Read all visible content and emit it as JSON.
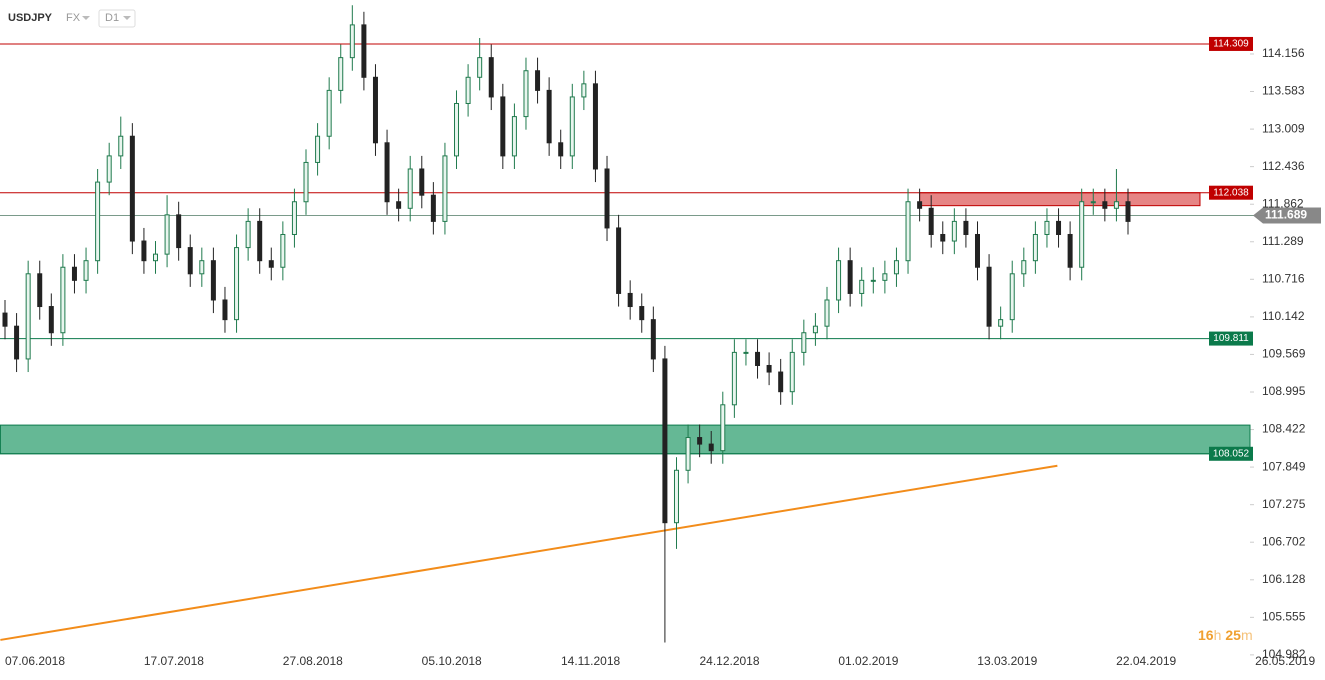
{
  "header": {
    "symbol": "USDJPY",
    "market": "FX",
    "interval": "D1"
  },
  "chart_data": {
    "type": "candlestick",
    "ylim": [
      104.98,
      114.98
    ],
    "yticks": [
      114.156,
      113.583,
      113.009,
      112.436,
      111.862,
      111.289,
      110.716,
      110.142,
      109.569,
      108.995,
      108.422,
      107.849,
      107.275,
      106.702,
      106.128,
      105.555,
      104.982
    ],
    "x_labels": [
      "07.06.2018",
      "17.07.2018",
      "27.08.2018",
      "05.10.2018",
      "14.11.2018",
      "24.12.2018",
      "01.02.2019",
      "13.03.2019",
      "22.04.2019",
      "26.05.2019"
    ],
    "up_color": "#1f7a4d",
    "down_color": "#222222",
    "open": [
      110.2,
      110.0,
      109.5,
      110.8,
      110.3,
      109.9,
      110.9,
      110.7,
      111.0,
      112.2,
      112.6,
      112.9,
      111.3,
      111.0,
      111.1,
      111.7,
      111.2,
      110.8,
      111.0,
      110.4,
      110.1,
      111.2,
      111.6,
      111.0,
      110.9,
      111.4,
      111.9,
      112.5,
      112.9,
      113.6,
      114.1,
      114.6,
      113.8,
      112.8,
      111.9,
      111.8,
      112.4,
      112.0,
      111.6,
      112.6,
      113.4,
      113.8,
      114.1,
      113.5,
      112.6,
      113.2,
      113.9,
      113.6,
      112.8,
      112.6,
      113.5,
      113.7,
      112.4,
      111.5,
      110.5,
      110.3,
      110.1,
      109.5,
      107.0,
      107.8,
      108.3,
      108.2,
      108.1,
      108.8,
      109.6,
      109.6,
      109.4,
      109.3,
      109.0,
      109.6,
      109.9,
      110.0,
      110.4,
      111.0,
      110.5,
      110.7,
      110.7,
      110.8,
      111.0,
      111.9,
      111.8,
      111.4,
      111.3,
      111.6,
      111.4,
      110.9,
      110.0,
      110.1,
      110.8,
      111.0,
      111.4,
      111.6,
      111.4,
      110.9,
      111.9,
      111.9,
      111.8,
      111.9
    ],
    "high": [
      110.4,
      110.2,
      111.0,
      111.0,
      110.5,
      111.1,
      111.1,
      111.2,
      112.4,
      112.8,
      113.2,
      113.1,
      111.5,
      111.3,
      112.0,
      111.9,
      111.4,
      111.2,
      111.2,
      110.6,
      111.4,
      111.8,
      111.8,
      111.2,
      111.6,
      112.1,
      112.7,
      113.1,
      113.8,
      114.3,
      114.9,
      114.8,
      114.0,
      113.0,
      112.1,
      112.6,
      112.6,
      112.2,
      112.8,
      113.6,
      114.0,
      114.4,
      114.3,
      113.7,
      113.4,
      114.1,
      114.1,
      113.8,
      113.0,
      113.7,
      113.9,
      113.9,
      112.6,
      111.7,
      110.7,
      110.5,
      110.3,
      109.7,
      108.0,
      108.5,
      108.5,
      108.4,
      109.0,
      109.8,
      109.8,
      109.8,
      109.6,
      109.5,
      109.8,
      110.1,
      110.2,
      110.6,
      111.2,
      111.2,
      110.9,
      110.9,
      111.0,
      111.2,
      112.1,
      112.1,
      112.0,
      111.6,
      111.8,
      111.8,
      111.6,
      111.1,
      110.3,
      111.0,
      111.2,
      111.6,
      111.8,
      111.8,
      111.6,
      112.1,
      112.1,
      112.1,
      112.4,
      112.1
    ],
    "low": [
      109.8,
      109.3,
      109.3,
      110.1,
      109.7,
      109.7,
      110.5,
      110.5,
      110.8,
      112.0,
      112.4,
      111.1,
      110.8,
      110.8,
      110.9,
      111.0,
      110.6,
      110.6,
      110.2,
      109.9,
      109.9,
      111.0,
      110.8,
      110.7,
      110.7,
      111.2,
      111.7,
      112.3,
      112.7,
      113.4,
      113.9,
      113.6,
      112.6,
      111.7,
      111.6,
      111.6,
      111.8,
      111.4,
      111.4,
      112.4,
      113.2,
      113.6,
      113.3,
      112.4,
      112.4,
      113.0,
      113.4,
      112.6,
      112.4,
      112.4,
      113.3,
      112.2,
      111.3,
      110.3,
      110.1,
      109.9,
      109.3,
      105.17,
      106.6,
      107.6,
      108.0,
      107.9,
      107.9,
      108.6,
      109.4,
      109.2,
      109.1,
      108.8,
      108.8,
      109.4,
      109.7,
      109.8,
      110.2,
      110.3,
      110.3,
      110.5,
      110.5,
      110.6,
      110.8,
      111.6,
      111.2,
      111.1,
      111.1,
      111.2,
      110.7,
      109.8,
      109.8,
      109.9,
      110.6,
      110.8,
      111.2,
      111.2,
      110.7,
      110.7,
      111.7,
      111.6,
      111.6,
      111.4
    ],
    "close": [
      110.0,
      109.5,
      110.8,
      110.3,
      109.9,
      110.9,
      110.7,
      111.0,
      112.2,
      112.6,
      112.9,
      111.3,
      111.0,
      111.1,
      111.7,
      111.2,
      110.8,
      111.0,
      110.4,
      110.1,
      111.2,
      111.6,
      111.0,
      110.9,
      111.4,
      111.9,
      112.5,
      112.9,
      113.6,
      114.1,
      114.6,
      113.8,
      112.8,
      111.9,
      111.8,
      112.4,
      112.0,
      111.6,
      112.6,
      113.4,
      113.8,
      114.1,
      113.5,
      112.6,
      113.2,
      113.9,
      113.6,
      112.8,
      112.6,
      113.5,
      113.7,
      112.4,
      111.5,
      110.5,
      110.3,
      110.1,
      109.5,
      107.0,
      107.8,
      108.3,
      108.2,
      108.1,
      108.8,
      109.6,
      109.6,
      109.4,
      109.3,
      109.0,
      109.6,
      109.9,
      110.0,
      110.4,
      111.0,
      110.5,
      110.7,
      110.7,
      110.8,
      111.0,
      111.9,
      111.8,
      111.4,
      111.3,
      111.6,
      111.4,
      110.9,
      110.0,
      110.1,
      110.8,
      111.0,
      111.4,
      111.6,
      111.4,
      110.9,
      111.9,
      111.9,
      111.8,
      111.9,
      111.6
    ],
    "levels": [
      {
        "value": 114.309,
        "color": "#c00000"
      },
      {
        "value": 112.038,
        "color": "#c00000"
      },
      {
        "value": 109.811,
        "color": "#0b7a4b"
      },
      {
        "value": 108.052,
        "color": "#0b7a4b"
      }
    ],
    "zones": [
      {
        "from": 111.84,
        "to": 112.038,
        "start": 79,
        "color": "#e06666"
      },
      {
        "from": 108.052,
        "to": 108.49,
        "start": -0.4,
        "color": "#3fa67a"
      }
    ],
    "trendline": {
      "points": [
        [
          -0.4,
          105.21
        ],
        [
          90.9,
          107.87
        ]
      ],
      "color": "#f28c1a"
    },
    "last_price": 111.689,
    "timer": {
      "hours": "16",
      "hours_unit": "h",
      "minutes": "25",
      "minutes_unit": "m"
    }
  }
}
